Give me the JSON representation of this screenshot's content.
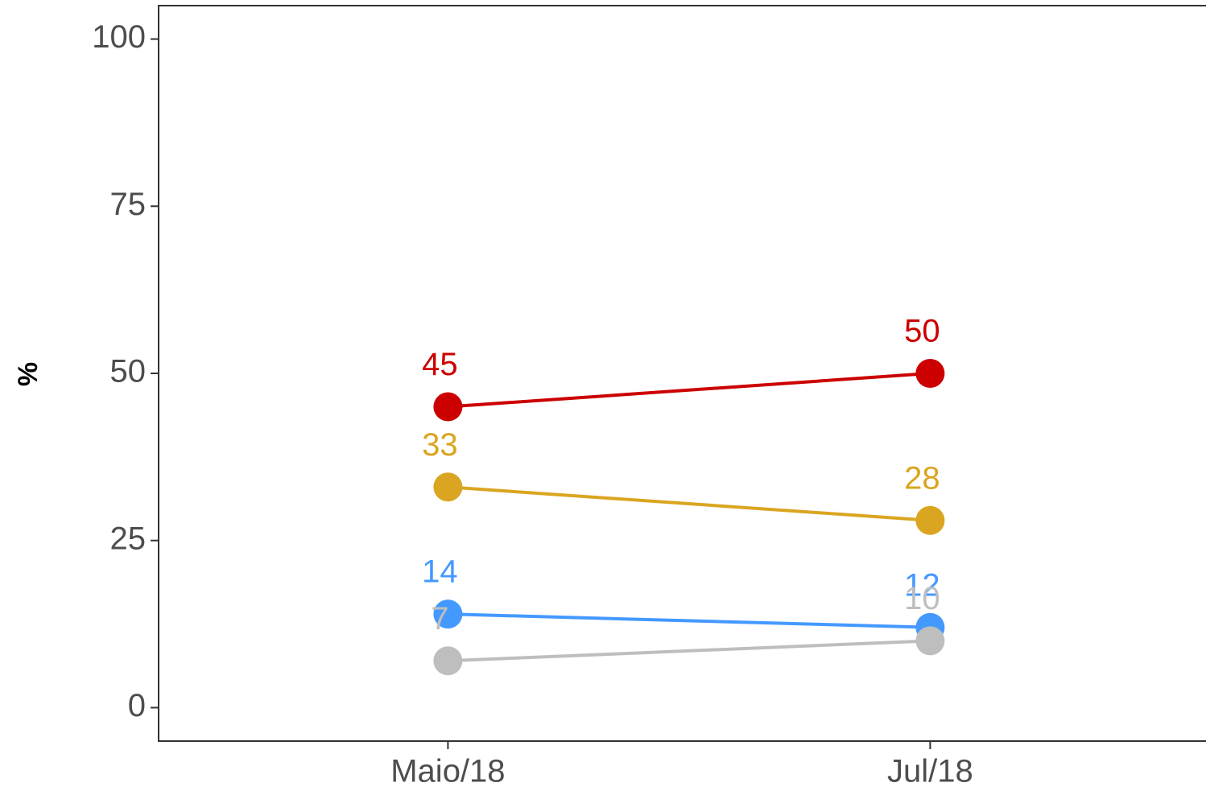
{
  "chart_data": {
    "type": "line",
    "y_label": "%",
    "categories": [
      "Maio/18",
      "Jul/18"
    ],
    "series": [
      {
        "color": "#cc0000",
        "values": [
          45,
          50
        ]
      },
      {
        "color": "#daa520",
        "values": [
          33,
          28
        ]
      },
      {
        "color": "#4499ff",
        "values": [
          14,
          12
        ]
      },
      {
        "color": "#bebebe",
        "values": [
          7,
          10
        ]
      }
    ],
    "ylim": [
      -5,
      105
    ],
    "yticks": [
      0,
      25,
      50,
      75,
      100
    ],
    "grid": false
  }
}
